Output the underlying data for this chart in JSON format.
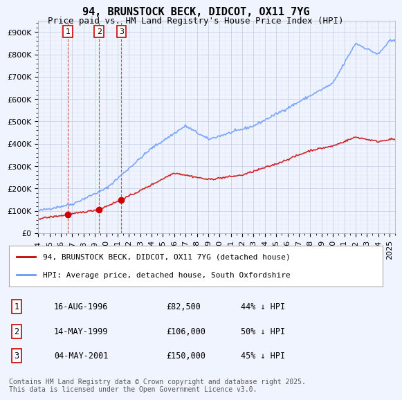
{
  "title": "94, BRUNSTOCK BECK, DIDCOT, OX11 7YG",
  "subtitle": "Price paid vs. HM Land Registry's House Price Index (HPI)",
  "ylabel": "",
  "xlim_start": 1994.0,
  "xlim_end": 2025.5,
  "ylim_min": 0,
  "ylim_max": 950000,
  "yticks": [
    0,
    100000,
    200000,
    300000,
    400000,
    500000,
    600000,
    700000,
    800000,
    900000
  ],
  "ytick_labels": [
    "£0",
    "£100K",
    "£200K",
    "£300K",
    "£400K",
    "£500K",
    "£600K",
    "£700K",
    "£800K",
    "£900K"
  ],
  "background_color": "#f0f4ff",
  "plot_bg_color": "#f0f4ff",
  "grid_color": "#c8d0e8",
  "hpi_color": "#6699ff",
  "price_color": "#cc0000",
  "sale_marker_color": "#cc0000",
  "sale_points": [
    {
      "year": 1996.62,
      "price": 82500,
      "label": "1"
    },
    {
      "year": 1999.37,
      "price": 106000,
      "label": "2"
    },
    {
      "year": 2001.34,
      "price": 150000,
      "label": "3"
    }
  ],
  "legend_red_label": "94, BRUNSTOCK BECK, DIDCOT, OX11 7YG (detached house)",
  "legend_blue_label": "HPI: Average price, detached house, South Oxfordshire",
  "table_rows": [
    {
      "num": "1",
      "date": "16-AUG-1996",
      "price": "£82,500",
      "pct": "44% ↓ HPI"
    },
    {
      "num": "2",
      "date": "14-MAY-1999",
      "price": "£106,000",
      "pct": "50% ↓ HPI"
    },
    {
      "num": "3",
      "date": "04-MAY-2001",
      "price": "£150,000",
      "pct": "45% ↓ HPI"
    }
  ],
  "footnote": "Contains HM Land Registry data © Crown copyright and database right 2025.\nThis data is licensed under the Open Government Licence v3.0.",
  "title_fontsize": 11,
  "subtitle_fontsize": 9,
  "tick_fontsize": 8,
  "legend_fontsize": 8,
  "table_fontsize": 8.5,
  "footnote_fontsize": 7
}
